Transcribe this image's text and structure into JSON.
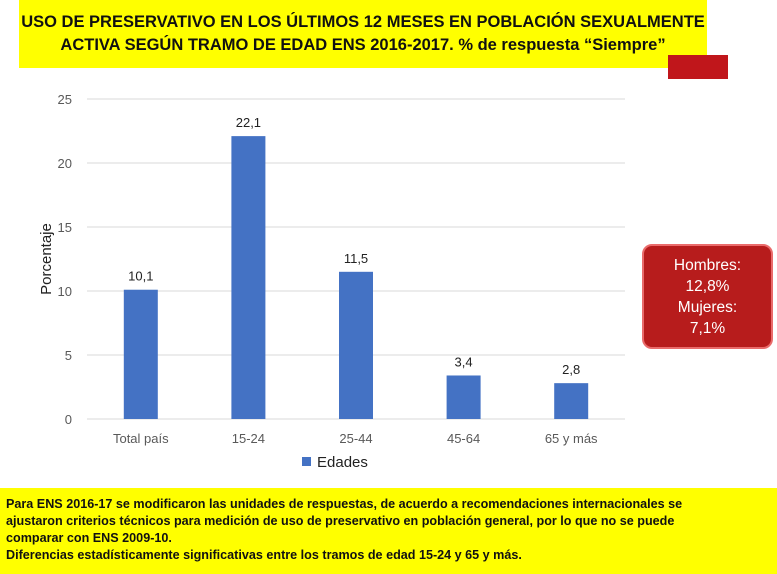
{
  "title": {
    "line1": "USO DE PRESERVATIVO EN LOS ÚLTIMOS 12 MESES EN POBLACIÓN SEXUALMENTE",
    "line2": "ACTIVA SEGÚN TRAMO DE EDAD ENS 2016-2017. % de respuesta “Siempre”"
  },
  "callout": {
    "line1": "Hombres:",
    "line2": "12,8%",
    "line3": "Mujeres:",
    "line4": "7,1%"
  },
  "note": {
    "line1": "Para ENS 2016-17 se modificaron las unidades de respuestas, de acuerdo a recomendaciones internacionales se",
    "line2": "ajustaron criterios técnicos para medición de uso de preservativo en población general, por lo que no se puede",
    "line3": "comparar con ENS 2009-10.",
    "line4": "Diferencias estadísticamente significativas entre los tramos de edad 15-24 y 65 y más."
  },
  "colors": {
    "bar": "#4472c4",
    "title_bg": "#ffff00",
    "callout_bg": "#b71c1c",
    "note_bg": "#ffff00",
    "accent_red": "#c0161b"
  },
  "chart_data": {
    "type": "bar",
    "categories": [
      "Total país",
      "15-24",
      "25-44",
      "45-64",
      "65 y más"
    ],
    "series": [
      {
        "name": "Edades",
        "values": [
          10.1,
          22.1,
          11.5,
          3.4,
          2.8
        ]
      }
    ],
    "data_labels": [
      "10,1",
      "22,1",
      "11,5",
      "3,4",
      "2,8"
    ],
    "ylabel": "Porcentaje",
    "xlabel": "",
    "ylim": [
      0,
      25
    ],
    "yticks": [
      0,
      5,
      10,
      15,
      20,
      25
    ],
    "ytick_labels": [
      "0",
      "5",
      "10",
      "15",
      "20",
      "25"
    ],
    "grid": true,
    "legend": "bottom"
  }
}
